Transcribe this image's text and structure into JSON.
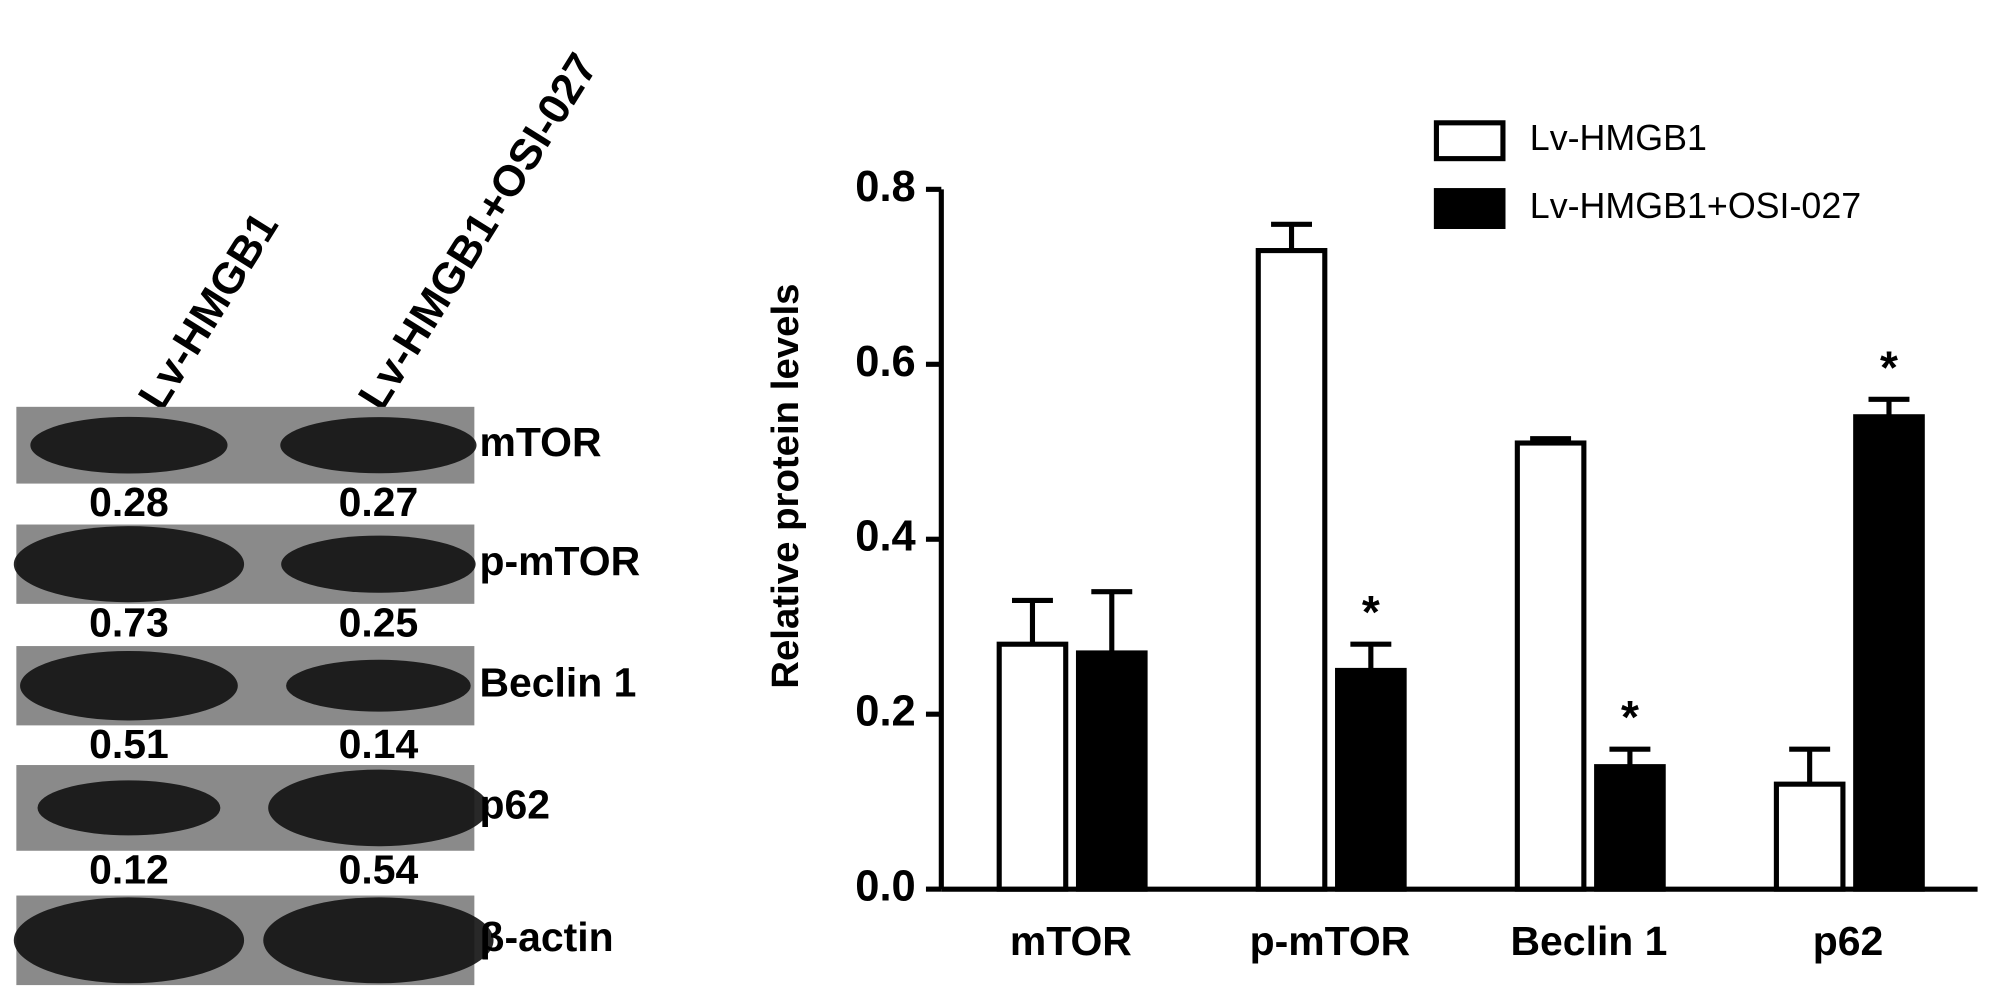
{
  "blot": {
    "lanes": [
      "Lv-HMGB1",
      "Lv-HMGB1+OSI-027"
    ],
    "rows": [
      {
        "label": "mTOR",
        "values": [
          0.28,
          0.27
        ]
      },
      {
        "label": "p-mTOR",
        "values": [
          0.73,
          0.25
        ]
      },
      {
        "label": "Beclin 1",
        "values": [
          0.51,
          0.14
        ]
      },
      {
        "label": "p62",
        "values": [
          0.12,
          0.54
        ]
      },
      {
        "label": "β-actin"
      }
    ]
  },
  "chart_data": {
    "type": "bar",
    "y_label": "Relative protein levels",
    "categories": [
      "mTOR",
      "p-mTOR",
      "Beclin 1",
      "p62"
    ],
    "series": [
      {
        "name": "Lv-HMGB1",
        "color": "#ffffff",
        "values": [
          0.28,
          0.73,
          0.51,
          0.12
        ],
        "errors": [
          0.05,
          0.03,
          0.005,
          0.04
        ]
      },
      {
        "name": "Lv-HMGB1+OSI-027",
        "color": "#000000",
        "values": [
          0.27,
          0.25,
          0.14,
          0.54
        ],
        "errors": [
          0.07,
          0.03,
          0.02,
          0.02
        ],
        "markers": [
          null,
          "*",
          "*",
          "*"
        ]
      }
    ],
    "ylim": [
      0,
      0.8
    ],
    "yticks": [
      {
        "value": 0,
        "label": "0.0"
      },
      0.2,
      0.4,
      0.6,
      0.8
    ]
  }
}
